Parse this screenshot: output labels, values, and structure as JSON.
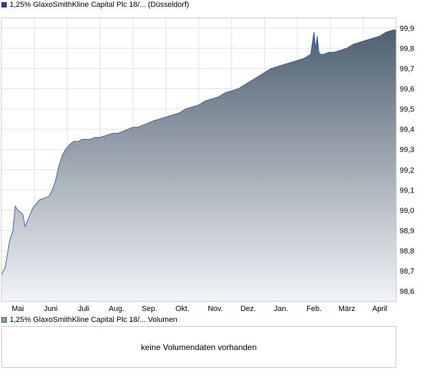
{
  "price_legend": {
    "label": "1,25% GlaxoSmithKline Capital Plc 18/... (Düsseldorf)",
    "color": "#1f3f8f"
  },
  "volume_legend": {
    "label": "1,25% GlaxoSmithKline Capital Plc 18/... Volumen",
    "color": "#66bb66"
  },
  "volume_panel": {
    "message": "keine Volumendaten vorhanden"
  },
  "chart_data": {
    "type": "area",
    "title": "",
    "xlabel": "",
    "ylabel": "",
    "ylim": [
      98.55,
      99.95
    ],
    "y_ticks": [
      98.6,
      98.7,
      98.8,
      98.9,
      99.0,
      99.1,
      99.2,
      99.3,
      99.4,
      99.5,
      99.6,
      99.7,
      99.8,
      99.9
    ],
    "y_tick_labels": [
      "98,6",
      "98,7",
      "98,8",
      "98,9",
      "99,0",
      "99,1",
      "99,2",
      "99,3",
      "99,4",
      "99,5",
      "99,6",
      "99,7",
      "99,8",
      "99,9"
    ],
    "x_ticks": [
      "Mai",
      "Juni",
      "Juli",
      "Aug.",
      "Sep.",
      "Okt.",
      "Nov.",
      "Dez.",
      "Jan.",
      "Feb.",
      "März",
      "April"
    ],
    "x_tick_positions": [
      0.5,
      1.5,
      2.5,
      3.5,
      4.5,
      5.5,
      6.5,
      7.5,
      8.5,
      9.5,
      10.5,
      11.5
    ],
    "grid": true,
    "line_color": "#3a62b4",
    "fill_top_color": "#4f6070",
    "fill_bottom_color": "#f2f4f7",
    "series": [
      {
        "x": [
          0,
          0.12,
          0.25,
          0.35,
          0.42,
          0.5,
          0.58,
          0.65,
          0.72,
          0.8,
          0.88,
          0.95,
          1.05,
          1.15,
          1.3,
          1.45,
          1.55,
          1.65,
          1.75,
          1.85,
          1.95,
          2.05,
          2.12,
          2.2,
          2.28,
          2.35,
          2.45,
          2.55,
          2.7,
          2.85,
          3.0,
          3.2,
          3.4,
          3.55,
          3.7,
          3.85,
          4.0,
          4.15,
          4.3,
          4.45,
          4.6,
          4.8,
          5.0,
          5.2,
          5.4,
          5.6,
          5.8,
          6.0,
          6.2,
          6.4,
          6.6,
          6.8,
          7.0,
          7.2,
          7.4,
          7.6,
          7.8,
          8.0,
          8.2,
          8.4,
          8.6,
          8.8,
          9.0,
          9.2,
          9.4,
          9.5,
          9.55,
          9.6,
          9.65,
          9.7,
          9.8,
          9.95,
          10.1,
          10.3,
          10.5,
          10.7,
          10.9,
          11.1,
          11.3,
          11.5,
          11.7,
          11.9,
          12.0
        ],
        "y": [
          98.68,
          98.72,
          98.85,
          98.9,
          99.02,
          99.0,
          98.99,
          98.98,
          98.92,
          98.95,
          98.98,
          99.01,
          99.03,
          99.05,
          99.06,
          99.07,
          99.1,
          99.15,
          99.22,
          99.27,
          99.3,
          99.32,
          99.33,
          99.34,
          99.34,
          99.34,
          99.35,
          99.35,
          99.35,
          99.36,
          99.36,
          99.37,
          99.38,
          99.38,
          99.39,
          99.4,
          99.41,
          99.41,
          99.42,
          99.43,
          99.44,
          99.45,
          99.46,
          99.47,
          99.48,
          99.5,
          99.51,
          99.52,
          99.54,
          99.55,
          99.56,
          99.58,
          99.59,
          99.6,
          99.62,
          99.64,
          99.66,
          99.68,
          99.7,
          99.71,
          99.72,
          99.73,
          99.74,
          99.75,
          99.77,
          99.88,
          99.8,
          99.86,
          99.78,
          99.77,
          99.77,
          99.78,
          99.78,
          99.79,
          99.8,
          99.82,
          99.83,
          99.84,
          99.85,
          99.86,
          99.88,
          99.89,
          99.89
        ]
      }
    ]
  }
}
